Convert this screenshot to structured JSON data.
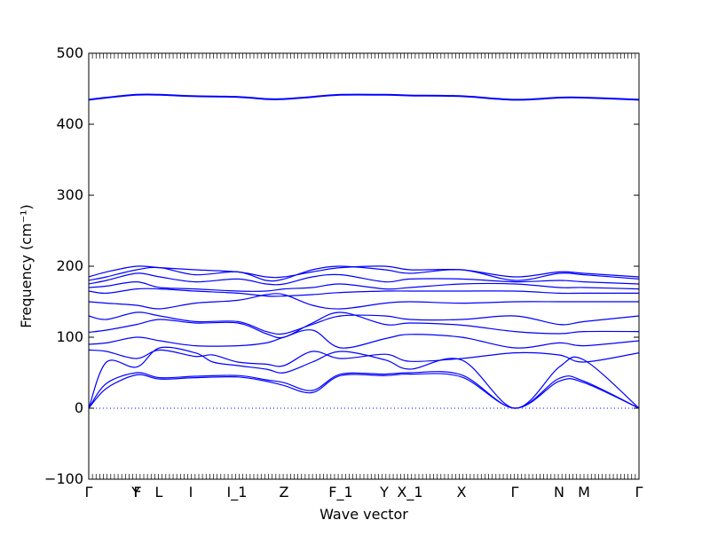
{
  "chart_data": {
    "type": "line",
    "title": "",
    "xlabel": "Wave vector",
    "ylabel": "Frequency (cm⁻¹)",
    "ylim": [
      -100,
      500
    ],
    "yticks": [
      -100,
      0,
      100,
      200,
      300,
      400,
      500
    ],
    "xlim": [
      0,
      31
    ],
    "zero_line": {
      "y": 0,
      "style": "dotted"
    },
    "grid": false,
    "legend": "none",
    "colors": {
      "bands": "#0000ff",
      "axes": "#000000",
      "zero_line": "#0000ff"
    },
    "high_symmetry_points": [
      {
        "label": "Γ",
        "x": 0
      },
      {
        "label": "Y",
        "x": 2.65
      },
      {
        "label": "F",
        "x": 2.75
      },
      {
        "label": "L",
        "x": 3.95
      },
      {
        "label": "I",
        "x": 5.75
      },
      {
        "label": "I_1",
        "x": 8.35
      },
      {
        "label": "Z",
        "x": 11.0
      },
      {
        "label": "F_1",
        "x": 14.2
      },
      {
        "label": "Y",
        "x": 16.65
      },
      {
        "label": "X_1",
        "x": 18.1
      },
      {
        "label": "X",
        "x": 21.0
      },
      {
        "label": "Γ",
        "x": 24.0
      },
      {
        "label": "N",
        "x": 26.5
      },
      {
        "label": "M",
        "x": 27.9
      },
      {
        "label": "Γ",
        "x": 31.0
      }
    ],
    "series": [
      {
        "x": [
          0,
          1,
          2.7,
          4,
          6,
          8.4,
          10,
          11,
          12.6,
          14.2,
          16.7,
          18.1,
          21,
          24,
          26.5,
          27.9,
          31
        ],
        "values": [
          0,
          28,
          47,
          41,
          43,
          44,
          38,
          32,
          22,
          46,
          46,
          48,
          44,
          0,
          38,
          36,
          0
        ]
      },
      {
        "x": [
          0,
          1,
          2.7,
          4,
          6,
          8.4,
          10,
          11,
          12.6,
          14.2,
          16.7,
          18.1,
          21,
          24,
          26.5,
          27.9,
          31
        ],
        "values": [
          0,
          35,
          50,
          43,
          45,
          46,
          40,
          36,
          25,
          48,
          48,
          50,
          47,
          0,
          42,
          38,
          0
        ]
      },
      {
        "x": [
          0,
          1,
          2.7,
          4,
          6,
          7,
          8.4,
          10,
          11,
          12.6,
          14.2,
          16.7,
          18.1,
          21,
          24,
          26.5,
          27.9,
          31
        ],
        "values": [
          0,
          65,
          58,
          85,
          78,
          65,
          60,
          55,
          50,
          65,
          80,
          68,
          55,
          68,
          0,
          58,
          68,
          0
        ]
      },
      {
        "x": [
          0,
          1,
          2.7,
          4,
          6,
          7,
          8.4,
          10,
          11,
          12.6,
          14.2,
          16.7,
          18.1,
          21,
          24,
          26.5,
          27.9,
          31
        ],
        "values": [
          82,
          80,
          70,
          82,
          73,
          75,
          65,
          62,
          60,
          80,
          70,
          76,
          66,
          70,
          78,
          75,
          65,
          78
        ]
      },
      {
        "x": [
          0,
          1,
          2.7,
          4,
          6,
          8.4,
          10,
          11,
          12.6,
          14.2,
          16.7,
          18.1,
          21,
          24,
          26.5,
          27.9,
          31
        ],
        "values": [
          90,
          92,
          100,
          95,
          88,
          88,
          92,
          100,
          110,
          85,
          98,
          104,
          100,
          85,
          92,
          88,
          95
        ]
      },
      {
        "x": [
          0,
          1,
          2.7,
          4,
          6,
          8.4,
          10,
          11,
          12.6,
          14.2,
          16.7,
          18.1,
          21,
          24,
          26.5,
          27.9,
          31
        ],
        "values": [
          107,
          110,
          118,
          125,
          120,
          120,
          105,
          100,
          120,
          135,
          118,
          120,
          117,
          108,
          105,
          108,
          108
        ]
      },
      {
        "x": [
          0,
          1,
          2.7,
          4,
          6,
          8.4,
          10,
          11,
          12.6,
          14.2,
          16.7,
          18.1,
          21,
          24,
          26.5,
          27.9,
          31
        ],
        "values": [
          130,
          125,
          135,
          130,
          122,
          122,
          108,
          105,
          118,
          130,
          130,
          125,
          125,
          130,
          118,
          122,
          130
        ]
      },
      {
        "x": [
          0,
          1,
          2.7,
          4,
          6,
          8.4,
          10,
          11,
          12.6,
          14.2,
          16.7,
          18.1,
          21,
          24,
          26.5,
          27.9,
          31
        ],
        "values": [
          150,
          148,
          145,
          140,
          148,
          152,
          160,
          160,
          145,
          140,
          148,
          150,
          148,
          150,
          150,
          150,
          150
        ]
      },
      {
        "x": [
          0,
          1,
          2.7,
          4,
          6,
          8.4,
          10,
          11,
          12.6,
          14.2,
          16.7,
          18.1,
          21,
          24,
          26.5,
          27.9,
          31
        ],
        "values": [
          165,
          162,
          168,
          168,
          165,
          162,
          158,
          158,
          160,
          163,
          165,
          165,
          165,
          165,
          162,
          162,
          162
        ]
      },
      {
        "x": [
          0,
          1,
          2.7,
          4,
          6,
          8.4,
          10,
          11,
          12.6,
          14.2,
          16.7,
          18.1,
          21,
          24,
          26.5,
          27.9,
          31
        ],
        "values": [
          170,
          172,
          178,
          170,
          168,
          165,
          165,
          168,
          170,
          175,
          168,
          170,
          175,
          175,
          170,
          170,
          168
        ]
      },
      {
        "x": [
          0,
          1,
          2.7,
          4,
          6,
          8.4,
          10,
          11,
          12.6,
          14.2,
          16.7,
          18.1,
          21,
          24,
          26.5,
          27.9,
          31
        ],
        "values": [
          175,
          180,
          190,
          185,
          178,
          182,
          175,
          175,
          185,
          188,
          178,
          182,
          182,
          178,
          180,
          178,
          175
        ]
      },
      {
        "x": [
          0,
          1,
          2.7,
          4,
          6,
          8.4,
          10,
          11,
          12.6,
          14.2,
          16.7,
          18.1,
          21,
          24,
          26.5,
          27.9,
          31
        ],
        "values": [
          180,
          185,
          195,
          198,
          188,
          192,
          180,
          182,
          195,
          200,
          195,
          190,
          195,
          180,
          190,
          188,
          182
        ]
      },
      {
        "x": [
          0,
          1,
          2.7,
          4,
          6,
          8.4,
          10,
          11,
          12.6,
          14.2,
          16.7,
          18.1,
          21,
          24,
          26.5,
          27.9,
          31
        ],
        "values": [
          185,
          192,
          200,
          198,
          195,
          192,
          185,
          185,
          192,
          198,
          200,
          195,
          195,
          185,
          192,
          190,
          185
        ]
      },
      {
        "x": [
          0,
          1,
          2.7,
          4,
          6,
          8.4,
          10,
          11,
          12.6,
          14.2,
          16.7,
          18.1,
          21,
          24,
          26.5,
          27.9,
          31
        ],
        "values": [
          434,
          437,
          441,
          441,
          439,
          438,
          435,
          435,
          438,
          441,
          441,
          440,
          439,
          434,
          437,
          437,
          434
        ]
      },
      {
        "x": [
          0,
          1,
          2.7,
          4,
          6,
          8.4,
          10,
          11,
          12.6,
          14.2,
          16.7,
          18.1,
          21,
          24,
          26.5,
          27.9,
          31
        ],
        "values": [
          435,
          438,
          442,
          442,
          440,
          439,
          436,
          436,
          439,
          442,
          442,
          441,
          440,
          435,
          438,
          438,
          435
        ]
      }
    ]
  }
}
